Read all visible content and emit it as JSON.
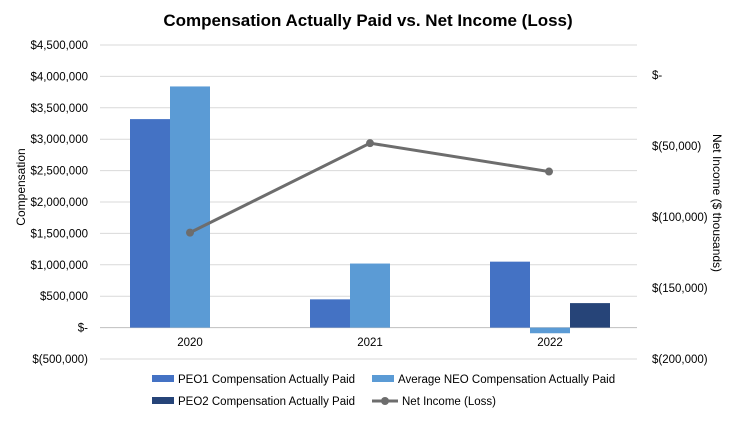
{
  "chart_data": {
    "type": "bar",
    "title": "Compensation Actually Paid vs. Net Income (Loss)",
    "categories": [
      "2020",
      "2021",
      "2022"
    ],
    "ylabel": "Compensation",
    "y2label": "Net Income ($ thousands)",
    "ylim": [
      -500000,
      4500000
    ],
    "y2lim": [
      -200000,
      0
    ],
    "y_ticks": [
      -500000,
      0,
      500000,
      1000000,
      1500000,
      2000000,
      2500000,
      3000000,
      3500000,
      4000000,
      4500000
    ],
    "y_tick_labels": [
      "$(500,000)",
      "$-",
      "$500,000",
      "$1,000,000",
      "$1,500,000",
      "$2,000,000",
      "$2,500,000",
      "$3,000,000",
      "$3,500,000",
      "$4,000,000",
      "$4,500,000"
    ],
    "y2_ticks": [
      -200000,
      -150000,
      -100000,
      -50000,
      0
    ],
    "y2_tick_labels": [
      "$(200,000)",
      "$(150,000)",
      "$(100,000)",
      "$(50,000)",
      "$-"
    ],
    "gridlines": true,
    "legend_position": "bottom",
    "series": [
      {
        "name": "PEO1 Compensation Actually Paid",
        "type": "bar",
        "color": "#4472C4",
        "values": [
          3320000,
          450000,
          1050000
        ]
      },
      {
        "name": "Average NEO Compensation Actually Paid",
        "type": "bar",
        "color": "#5B9BD5",
        "values": [
          3840000,
          1020000,
          -90000
        ]
      },
      {
        "name": "PEO2 Compensation Actually Paid",
        "type": "bar",
        "color": "#264478",
        "values": [
          null,
          null,
          390000
        ]
      },
      {
        "name": "Net Income (Loss)",
        "type": "line",
        "axis": "secondary",
        "color": "#6D6D6D",
        "values": [
          -111000,
          -48000,
          -68000
        ]
      }
    ]
  }
}
